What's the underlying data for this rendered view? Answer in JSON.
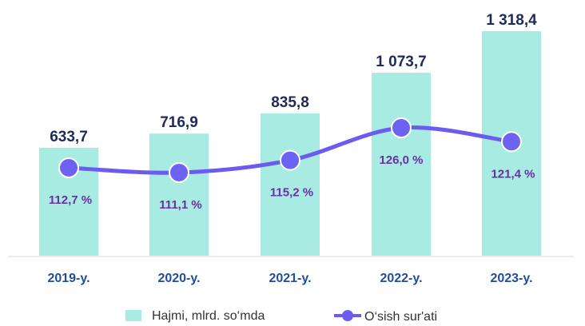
{
  "chart_data": {
    "type": "bar",
    "categories": [
      "2019-y.",
      "2020-y.",
      "2021-y.",
      "2022-y.",
      "2023-y."
    ],
    "series": [
      {
        "name": "Hajmi, mlrd. so‘mda",
        "type": "bar",
        "values": [
          633.7,
          716.9,
          835.8,
          1073.7,
          1318.4
        ],
        "labels": [
          "633,7",
          "716,9",
          "835,8",
          "1 073,7",
          "1 318,4"
        ],
        "color": "#a8ebe3"
      },
      {
        "name": "O‘sish sur'ati",
        "type": "line",
        "values": [
          112.7,
          111.1,
          115.2,
          126.0,
          121.4
        ],
        "labels": [
          "112,7 %",
          "111,1 %",
          "115,2 %",
          "126,0 %",
          "121,4 %"
        ],
        "color": "#6a5cf0"
      }
    ],
    "title": "",
    "xlabel": "",
    "ylabel": "",
    "grid": false,
    "legend_position": "bottom"
  }
}
